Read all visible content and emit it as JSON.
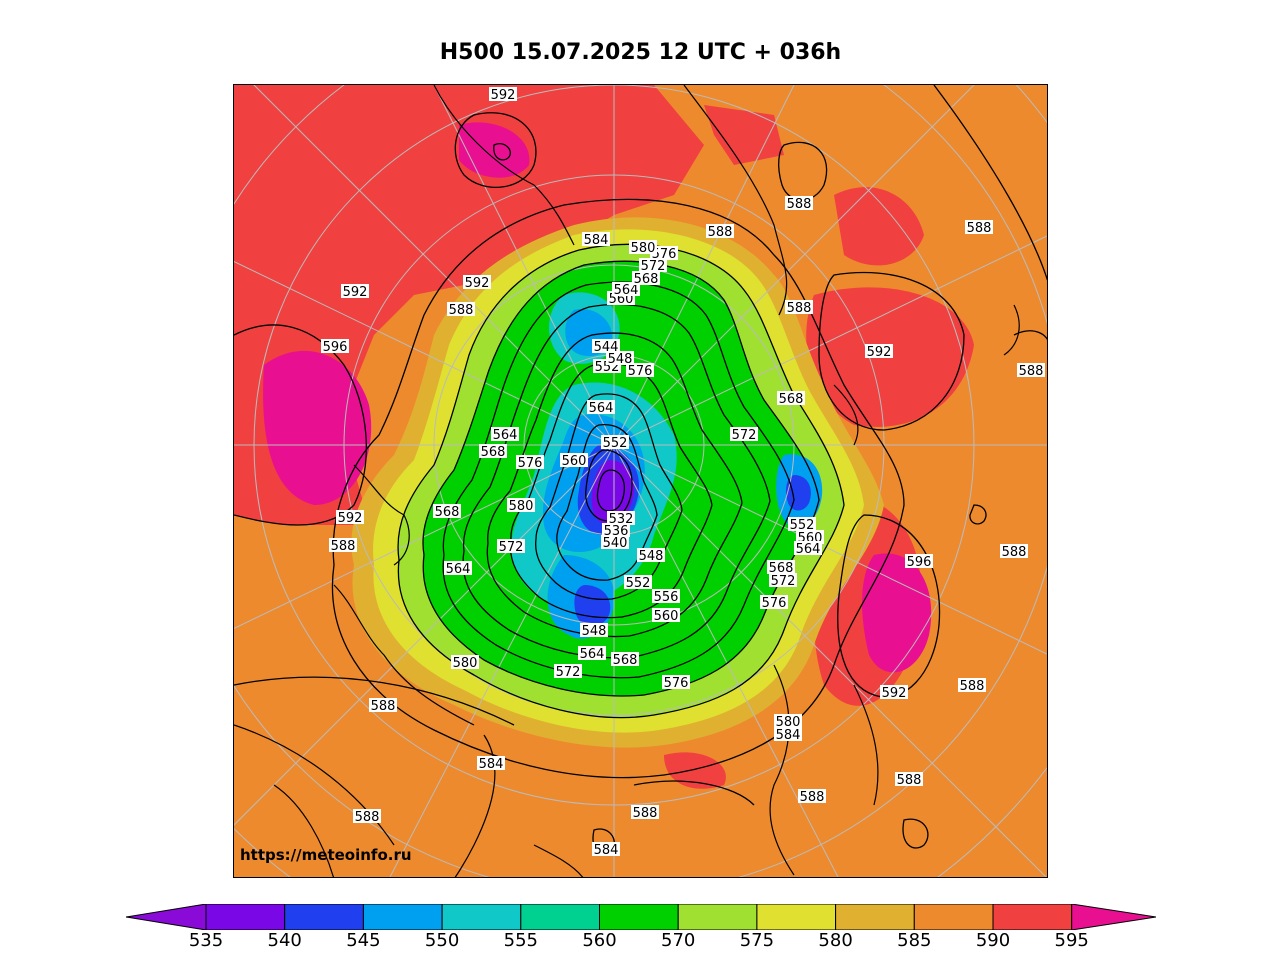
{
  "title": "H500  15.07.2025 12 UTC + 036h",
  "watermark": "https://meteoinfo.ru",
  "colorbar": {
    "ticks": [
      "535",
      "540",
      "545",
      "550",
      "555",
      "560",
      "570",
      "575",
      "580",
      "585",
      "590",
      "595"
    ],
    "colors": [
      "#8a0ad8",
      "#7a08e6",
      "#2040f0",
      "#00a0f0",
      "#10c8c8",
      "#00d090",
      "#00d000",
      "#a0e030",
      "#e0e030",
      "#e0b030",
      "#ee8a2e",
      "#f04040",
      "#e81090"
    ]
  },
  "contour_labels": {
    "c592": "592",
    "c596": "596",
    "c588": "588",
    "c584": "584",
    "c580": "580",
    "c576": "576",
    "c572": "572",
    "c568": "568",
    "c564": "564",
    "c560": "560",
    "c556": "556",
    "c552": "552",
    "c548": "548",
    "c544": "544",
    "c540": "540",
    "c536": "536",
    "c532": "532"
  },
  "fill_colors": {
    "orange": "#ee8a2e",
    "red": "#f04040",
    "magenta": "#e81090",
    "gold": "#e0b030",
    "yellow": "#e0e030",
    "lime": "#a0e030",
    "green": "#00d000",
    "teal": "#10c8c8",
    "sky": "#00a0f0",
    "blue": "#2040f0",
    "violet": "#7a08e6"
  }
}
